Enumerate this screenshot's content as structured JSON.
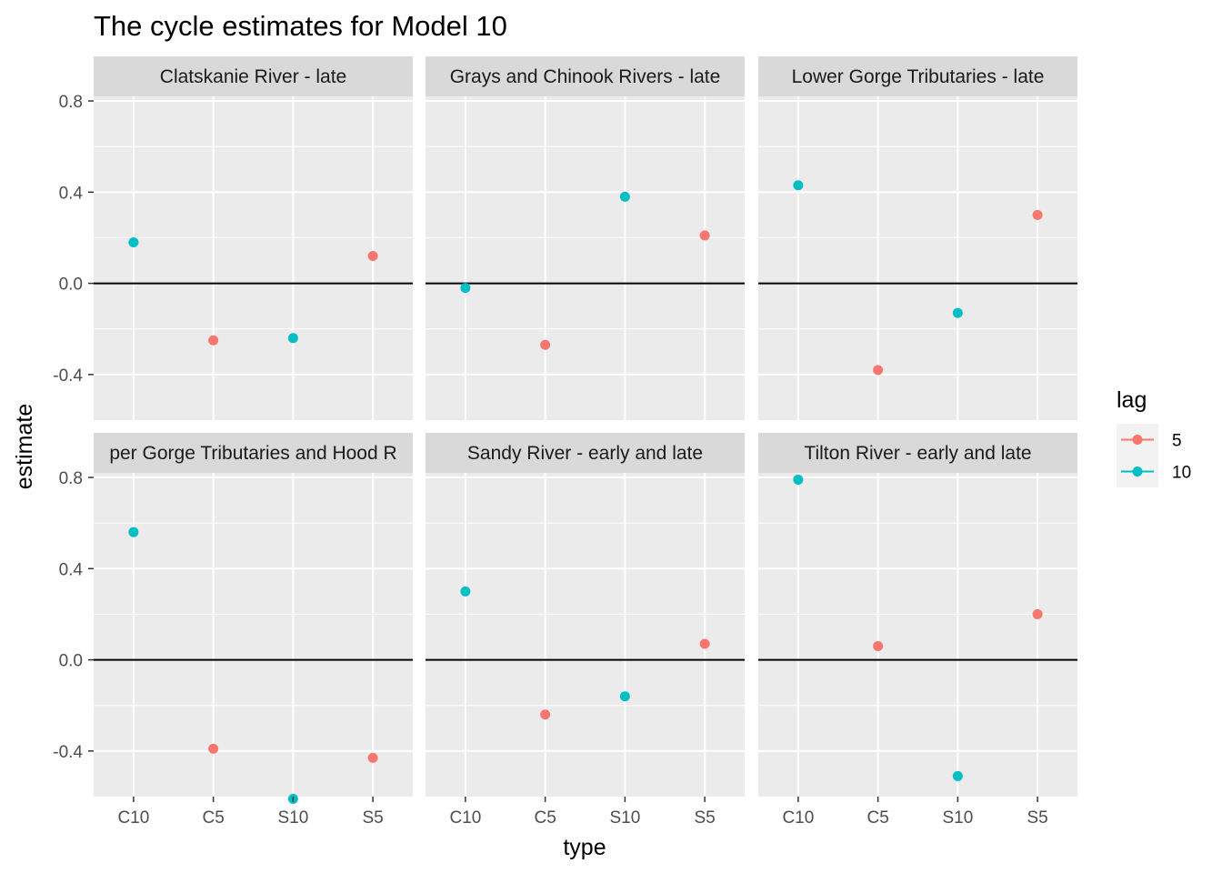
{
  "chart_data": {
    "type": "scatter",
    "title": "The cycle estimates for Model 10",
    "xlabel": "type",
    "ylabel": "estimate",
    "categories": [
      "C10",
      "C5",
      "S10",
      "S5"
    ],
    "ylim": [
      -0.6,
      0.82
    ],
    "yticks": [
      -0.4,
      0.0,
      0.4,
      0.8
    ],
    "ytick_labels": [
      "-0.4",
      "0.0",
      "0.4",
      "0.8"
    ],
    "hline": 0,
    "grid": true,
    "legend": {
      "title": "lag",
      "placement": "right",
      "entries": [
        {
          "label": "5",
          "color": "#F8766D"
        },
        {
          "label": "10",
          "color": "#00BFC4"
        }
      ]
    },
    "panels": [
      {
        "label": "Clatskanie River - late",
        "points": [
          {
            "type": "C10",
            "lag": "10",
            "estimate": 0.18
          },
          {
            "type": "C5",
            "lag": "5",
            "estimate": -0.25
          },
          {
            "type": "S10",
            "lag": "10",
            "estimate": -0.24
          },
          {
            "type": "S5",
            "lag": "5",
            "estimate": 0.12
          }
        ]
      },
      {
        "label": "Grays and Chinook Rivers - late",
        "points": [
          {
            "type": "C10",
            "lag": "10",
            "estimate": -0.02
          },
          {
            "type": "C5",
            "lag": "5",
            "estimate": -0.27
          },
          {
            "type": "S10",
            "lag": "10",
            "estimate": 0.38
          },
          {
            "type": "S5",
            "lag": "5",
            "estimate": 0.21
          }
        ]
      },
      {
        "label": "Lower Gorge Tributaries - late",
        "points": [
          {
            "type": "C10",
            "lag": "10",
            "estimate": 0.43
          },
          {
            "type": "C5",
            "lag": "5",
            "estimate": -0.38
          },
          {
            "type": "S10",
            "lag": "10",
            "estimate": -0.13
          },
          {
            "type": "S5",
            "lag": "5",
            "estimate": 0.3
          }
        ]
      },
      {
        "label": "Upper Gorge Tributaries and Hood River - early",
        "visible_label": "per Gorge Tributaries and Hood R",
        "points": [
          {
            "type": "C10",
            "lag": "10",
            "estimate": 0.56
          },
          {
            "type": "C5",
            "lag": "5",
            "estimate": -0.39
          },
          {
            "type": "S10",
            "lag": "10",
            "estimate": -0.61
          },
          {
            "type": "S5",
            "lag": "5",
            "estimate": -0.43
          }
        ]
      },
      {
        "label": "Sandy River - early and late",
        "points": [
          {
            "type": "C10",
            "lag": "10",
            "estimate": 0.3
          },
          {
            "type": "C5",
            "lag": "5",
            "estimate": -0.24
          },
          {
            "type": "S10",
            "lag": "10",
            "estimate": -0.16
          },
          {
            "type": "S5",
            "lag": "5",
            "estimate": 0.07
          }
        ]
      },
      {
        "label": "Tilton River - early and late",
        "points": [
          {
            "type": "C10",
            "lag": "10",
            "estimate": 0.79
          },
          {
            "type": "C5",
            "lag": "5",
            "estimate": 0.06
          },
          {
            "type": "S10",
            "lag": "10",
            "estimate": -0.51
          },
          {
            "type": "S5",
            "lag": "5",
            "estimate": 0.2
          }
        ]
      }
    ]
  }
}
